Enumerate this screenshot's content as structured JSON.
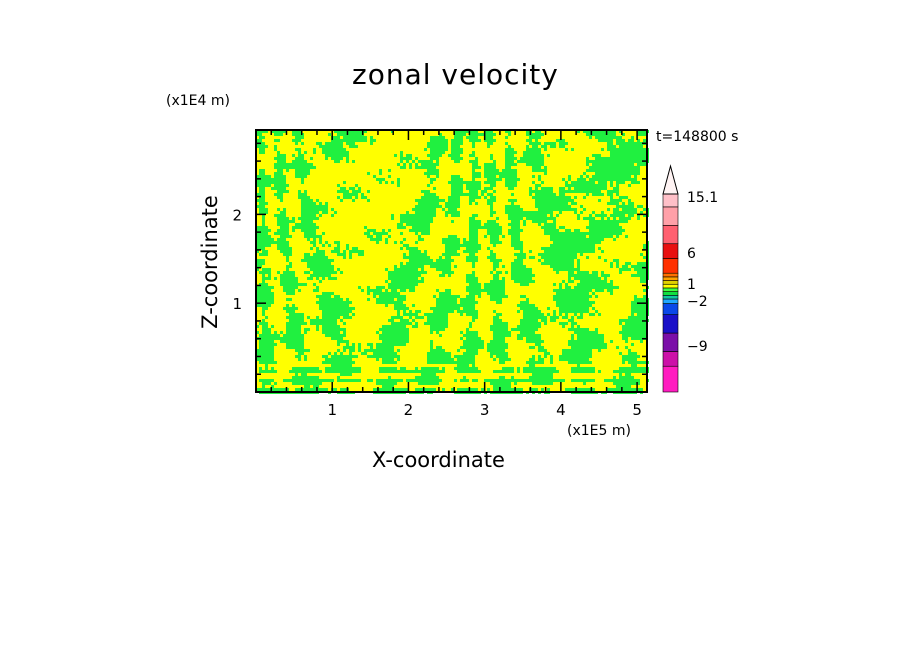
{
  "chart_data": {
    "type": "heatmap",
    "title": "zonal velocity",
    "xlabel": "X-coordinate",
    "ylabel": "Z-coordinate",
    "x_multiplier": "(x1E5 m)",
    "y_multiplier": "(x1E4 m)",
    "time_label": "t=148800 s",
    "xlim": [
      0,
      5.13
    ],
    "ylim": [
      0,
      2.95
    ],
    "x_ticks": [
      "1",
      "2",
      "3",
      "4",
      "5"
    ],
    "y_ticks": [
      "1",
      "2"
    ],
    "dominant_classes": [
      "yellow",
      "green"
    ],
    "colorbar": {
      "labels": [
        "15.1",
        "6",
        "1",
        "-2",
        "-9"
      ],
      "levels": [
        -15.1,
        -12,
        -9,
        -6,
        -4,
        -2,
        -1.5,
        -1,
        -0.5,
        0,
        0.5,
        1,
        1.5,
        2,
        4,
        6,
        9,
        12,
        15.1
      ],
      "colors": [
        "#ff1cc0",
        "#cc10a8",
        "#7b0fa8",
        "#1a10c8",
        "#0a48e8",
        "#20a8ff",
        "#10c8a0",
        "#10e040",
        "#40ff40",
        "#ffff00",
        "#e0d000",
        "#ffa000",
        "#ff7000",
        "#ff3000",
        "#e81010",
        "#ff6070",
        "#ffa0a8",
        "#ffc0c8"
      ]
    }
  }
}
